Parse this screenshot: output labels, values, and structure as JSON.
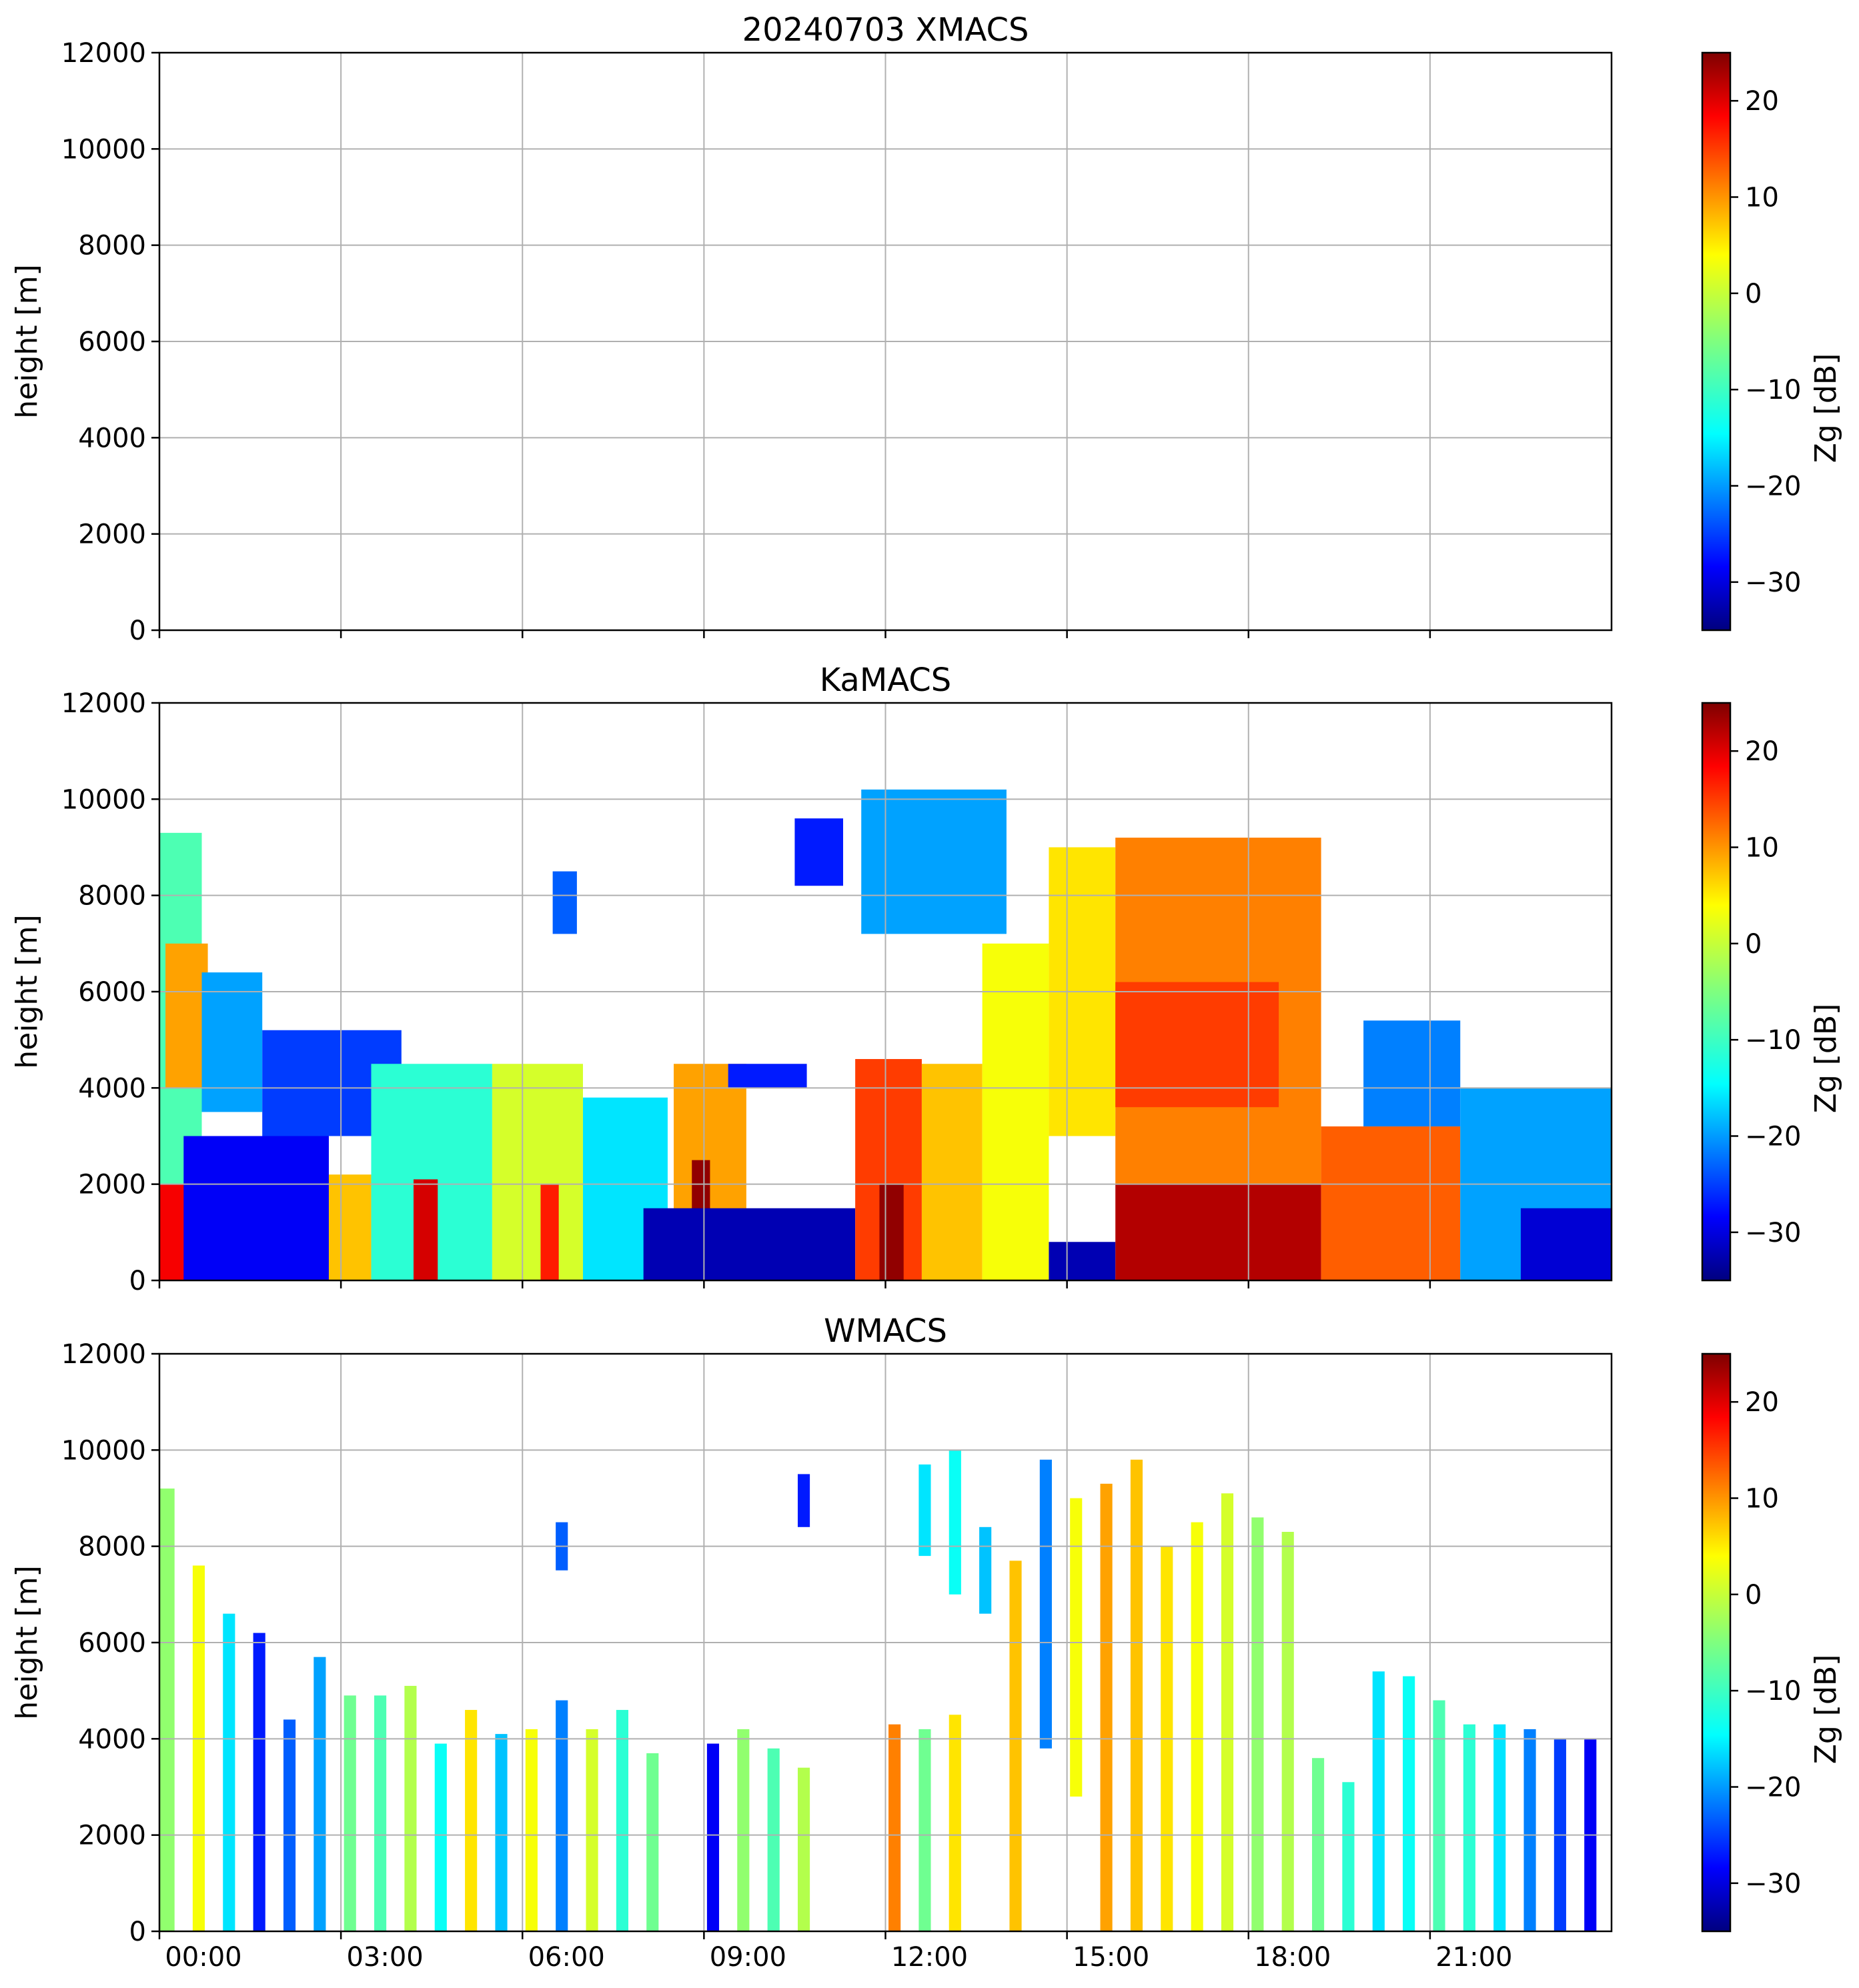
{
  "figure_title_date": "20240703",
  "chart_data": [
    {
      "type": "heatmap",
      "title": "20240703 XMACS",
      "xlabel": "",
      "ylabel": "height [m]",
      "ylim": [
        0,
        12000
      ],
      "yticks": [
        "0",
        "2000",
        "4000",
        "6000",
        "8000",
        "10000",
        "12000"
      ],
      "xticks": [
        "00:00",
        "03:00",
        "06:00",
        "09:00",
        "12:00",
        "15:00",
        "18:00",
        "21:00"
      ],
      "xtick_labels_visible": false,
      "grid": true,
      "colorbar": {
        "label": "Zg [dB]",
        "range": [
          -35,
          25
        ],
        "ticks": [
          "20",
          "10",
          "0",
          "−10",
          "−20",
          "−30"
        ],
        "colormap": "jet"
      },
      "cells": []
    },
    {
      "type": "heatmap",
      "title": "KaMACS",
      "xlabel": "",
      "ylabel": "height [m]",
      "ylim": [
        0,
        12000
      ],
      "yticks": [
        "0",
        "2000",
        "4000",
        "6000",
        "8000",
        "10000",
        "12000"
      ],
      "xticks": [
        "00:00",
        "03:00",
        "06:00",
        "09:00",
        "12:00",
        "15:00",
        "18:00",
        "21:00"
      ],
      "xtick_labels_visible": false,
      "grid": true,
      "colorbar": {
        "label": "Zg [dB]",
        "range": [
          -35,
          25
        ],
        "ticks": [
          "20",
          "10",
          "0",
          "−10",
          "−20",
          "−30"
        ],
        "colormap": "jet"
      },
      "cells_note_units": "t0/t1 in hours of day, h0/h1 in m, z in dB",
      "cells": [
        {
          "t0": 0.0,
          "t1": 0.7,
          "h0": 0,
          "h1": 9300,
          "z": -8
        },
        {
          "t0": 0.0,
          "t1": 0.5,
          "h0": 0,
          "h1": 2000,
          "z": 18
        },
        {
          "t0": 0.1,
          "t1": 0.8,
          "h0": 4000,
          "h1": 7000,
          "z": 8
        },
        {
          "t0": 0.7,
          "t1": 1.7,
          "h0": 3500,
          "h1": 6400,
          "z": -18
        },
        {
          "t0": 0.4,
          "t1": 2.8,
          "h0": 0,
          "h1": 3000,
          "z": -28
        },
        {
          "t0": 1.7,
          "t1": 4.0,
          "h0": 3000,
          "h1": 5200,
          "z": -24
        },
        {
          "t0": 2.8,
          "t1": 3.5,
          "h0": 0,
          "h1": 2200,
          "z": 6
        },
        {
          "t0": 3.5,
          "t1": 5.5,
          "h0": 0,
          "h1": 4500,
          "z": -10
        },
        {
          "t0": 4.2,
          "t1": 4.6,
          "h0": 0,
          "h1": 2100,
          "z": 20
        },
        {
          "t0": 5.5,
          "t1": 7.0,
          "h0": 0,
          "h1": 4500,
          "z": 0
        },
        {
          "t0": 6.3,
          "t1": 6.6,
          "h0": 0,
          "h1": 2000,
          "z": 16
        },
        {
          "t0": 7.0,
          "t1": 8.4,
          "h0": 0,
          "h1": 3800,
          "z": -14
        },
        {
          "t0": 6.5,
          "t1": 6.9,
          "h0": 7200,
          "h1": 8500,
          "z": -22
        },
        {
          "t0": 8.5,
          "t1": 9.7,
          "h0": 0,
          "h1": 4500,
          "z": 8
        },
        {
          "t0": 8.8,
          "t1": 9.1,
          "h0": 0,
          "h1": 2500,
          "z": 24
        },
        {
          "t0": 9.4,
          "t1": 10.7,
          "h0": 4000,
          "h1": 4500,
          "z": -26
        },
        {
          "t0": 10.5,
          "t1": 11.3,
          "h0": 8200,
          "h1": 9600,
          "z": -26
        },
        {
          "t0": 8.0,
          "t1": 11.5,
          "h0": 0,
          "h1": 1500,
          "z": -32
        },
        {
          "t0": 11.5,
          "t1": 12.6,
          "h0": 0,
          "h1": 4600,
          "z": 14
        },
        {
          "t0": 11.9,
          "t1": 12.3,
          "h0": 0,
          "h1": 2000,
          "z": 24
        },
        {
          "t0": 12.6,
          "t1": 13.6,
          "h0": 0,
          "h1": 4500,
          "z": 6
        },
        {
          "t0": 11.6,
          "t1": 14.0,
          "h0": 7200,
          "h1": 10200,
          "z": -18
        },
        {
          "t0": 13.6,
          "t1": 14.7,
          "h0": 0,
          "h1": 7000,
          "z": 2
        },
        {
          "t0": 14.7,
          "t1": 15.8,
          "h0": 3000,
          "h1": 9000,
          "z": 4
        },
        {
          "t0": 14.7,
          "t1": 15.8,
          "h0": 0,
          "h1": 800,
          "z": -32
        },
        {
          "t0": 15.8,
          "t1": 19.2,
          "h0": 2000,
          "h1": 9200,
          "z": 10
        },
        {
          "t0": 15.8,
          "t1": 19.2,
          "h0": 0,
          "h1": 2000,
          "z": 22
        },
        {
          "t0": 15.8,
          "t1": 18.5,
          "h0": 3600,
          "h1": 6200,
          "z": 14
        },
        {
          "t0": 19.2,
          "t1": 21.5,
          "h0": 0,
          "h1": 3200,
          "z": 12
        },
        {
          "t0": 19.9,
          "t1": 21.5,
          "h0": 3200,
          "h1": 5400,
          "z": -20
        },
        {
          "t0": 21.5,
          "t1": 24.0,
          "h0": 0,
          "h1": 4000,
          "z": -18
        },
        {
          "t0": 22.5,
          "t1": 24.0,
          "h0": 0,
          "h1": 1500,
          "z": -30
        }
      ]
    },
    {
      "type": "heatmap",
      "title": "WMACS",
      "xlabel": "",
      "ylabel": "height [m]",
      "ylim": [
        0,
        12000
      ],
      "yticks": [
        "0",
        "2000",
        "4000",
        "6000",
        "8000",
        "10000",
        "12000"
      ],
      "xticks": [
        "00:00",
        "03:00",
        "06:00",
        "09:00",
        "12:00",
        "15:00",
        "18:00",
        "21:00"
      ],
      "xtick_labels_visible": true,
      "grid": true,
      "colorbar": {
        "label": "Zg [dB]",
        "range": [
          -35,
          25
        ],
        "ticks": [
          "20",
          "10",
          "0",
          "−10",
          "−20",
          "−30"
        ],
        "colormap": "jet"
      },
      "cells_note_units": "t0/t1 in hours of day, h0/h1 in m, z in dB",
      "cells": [
        {
          "t0": 0.0,
          "t1": 0.25,
          "h0": 0,
          "h1": 9200,
          "z": -4
        },
        {
          "t0": 0.55,
          "t1": 0.75,
          "h0": 0,
          "h1": 7600,
          "z": 2
        },
        {
          "t0": 1.05,
          "t1": 1.25,
          "h0": 0,
          "h1": 6600,
          "z": -14
        },
        {
          "t0": 1.55,
          "t1": 1.75,
          "h0": 0,
          "h1": 6200,
          "z": -26
        },
        {
          "t0": 2.05,
          "t1": 2.25,
          "h0": 0,
          "h1": 4400,
          "z": -22
        },
        {
          "t0": 2.55,
          "t1": 2.75,
          "h0": 0,
          "h1": 5700,
          "z": -18
        },
        {
          "t0": 3.05,
          "t1": 3.25,
          "h0": 0,
          "h1": 4900,
          "z": -6
        },
        {
          "t0": 3.55,
          "t1": 3.75,
          "h0": 0,
          "h1": 4900,
          "z": -8
        },
        {
          "t0": 4.05,
          "t1": 4.25,
          "h0": 0,
          "h1": 5100,
          "z": -2
        },
        {
          "t0": 4.55,
          "t1": 4.75,
          "h0": 0,
          "h1": 3900,
          "z": -12
        },
        {
          "t0": 5.05,
          "t1": 5.25,
          "h0": 0,
          "h1": 4600,
          "z": 4
        },
        {
          "t0": 5.55,
          "t1": 5.75,
          "h0": 0,
          "h1": 4100,
          "z": -16
        },
        {
          "t0": 6.05,
          "t1": 6.25,
          "h0": 0,
          "h1": 4200,
          "z": 2
        },
        {
          "t0": 6.55,
          "t1": 6.75,
          "h0": 0,
          "h1": 4800,
          "z": -20
        },
        {
          "t0": 7.05,
          "t1": 7.25,
          "h0": 0,
          "h1": 4200,
          "z": 0
        },
        {
          "t0": 7.55,
          "t1": 7.75,
          "h0": 0,
          "h1": 4600,
          "z": -10
        },
        {
          "t0": 8.05,
          "t1": 8.25,
          "h0": 0,
          "h1": 3700,
          "z": -6
        },
        {
          "t0": 6.55,
          "t1": 6.75,
          "h0": 7500,
          "h1": 8500,
          "z": -22
        },
        {
          "t0": 9.05,
          "t1": 9.25,
          "h0": 0,
          "h1": 3900,
          "z": -28
        },
        {
          "t0": 9.55,
          "t1": 9.75,
          "h0": 0,
          "h1": 4200,
          "z": -4
        },
        {
          "t0": 10.05,
          "t1": 10.25,
          "h0": 0,
          "h1": 3800,
          "z": -8
        },
        {
          "t0": 10.55,
          "t1": 10.75,
          "h0": 0,
          "h1": 3400,
          "z": -2
        },
        {
          "t0": 10.55,
          "t1": 10.75,
          "h0": 8400,
          "h1": 9500,
          "z": -26
        },
        {
          "t0": 12.05,
          "t1": 12.25,
          "h0": 0,
          "h1": 4300,
          "z": 10
        },
        {
          "t0": 12.55,
          "t1": 12.75,
          "h0": 7800,
          "h1": 9700,
          "z": -14
        },
        {
          "t0": 12.55,
          "t1": 12.75,
          "h0": 0,
          "h1": 4200,
          "z": -6
        },
        {
          "t0": 13.05,
          "t1": 13.25,
          "h0": 0,
          "h1": 4500,
          "z": 4
        },
        {
          "t0": 13.05,
          "t1": 13.25,
          "h0": 7000,
          "h1": 10000,
          "z": -12
        },
        {
          "t0": 13.55,
          "t1": 13.75,
          "h0": 6600,
          "h1": 8400,
          "z": -16
        },
        {
          "t0": 14.05,
          "t1": 14.25,
          "h0": 0,
          "h1": 7700,
          "z": 6
        },
        {
          "t0": 14.55,
          "t1": 14.75,
          "h0": 3800,
          "h1": 9800,
          "z": -20
        },
        {
          "t0": 15.05,
          "t1": 15.25,
          "h0": 2800,
          "h1": 9000,
          "z": 2
        },
        {
          "t0": 15.55,
          "t1": 15.75,
          "h0": 0,
          "h1": 9300,
          "z": 8
        },
        {
          "t0": 16.05,
          "t1": 16.25,
          "h0": 0,
          "h1": 9800,
          "z": 6
        },
        {
          "t0": 16.55,
          "t1": 16.75,
          "h0": 0,
          "h1": 8000,
          "z": 4
        },
        {
          "t0": 17.05,
          "t1": 17.25,
          "h0": 0,
          "h1": 8500,
          "z": 2
        },
        {
          "t0": 17.55,
          "t1": 17.75,
          "h0": 0,
          "h1": 9100,
          "z": 0
        },
        {
          "t0": 18.05,
          "t1": 18.25,
          "h0": 0,
          "h1": 8600,
          "z": -4
        },
        {
          "t0": 18.55,
          "t1": 18.75,
          "h0": 0,
          "h1": 8300,
          "z": -2
        },
        {
          "t0": 19.05,
          "t1": 19.25,
          "h0": 0,
          "h1": 3600,
          "z": -6
        },
        {
          "t0": 19.55,
          "t1": 19.75,
          "h0": 0,
          "h1": 3100,
          "z": -10
        },
        {
          "t0": 20.05,
          "t1": 20.25,
          "h0": 0,
          "h1": 5400,
          "z": -14
        },
        {
          "t0": 20.55,
          "t1": 20.75,
          "h0": 0,
          "h1": 5300,
          "z": -12
        },
        {
          "t0": 21.05,
          "t1": 21.25,
          "h0": 0,
          "h1": 4800,
          "z": -8
        },
        {
          "t0": 21.55,
          "t1": 21.75,
          "h0": 0,
          "h1": 4300,
          "z": -10
        },
        {
          "t0": 22.05,
          "t1": 22.25,
          "h0": 0,
          "h1": 4300,
          "z": -14
        },
        {
          "t0": 22.55,
          "t1": 22.75,
          "h0": 0,
          "h1": 4200,
          "z": -20
        },
        {
          "t0": 23.05,
          "t1": 23.25,
          "h0": 0,
          "h1": 4000,
          "z": -24
        },
        {
          "t0": 23.55,
          "t1": 23.75,
          "h0": 0,
          "h1": 4000,
          "z": -28
        }
      ]
    }
  ]
}
